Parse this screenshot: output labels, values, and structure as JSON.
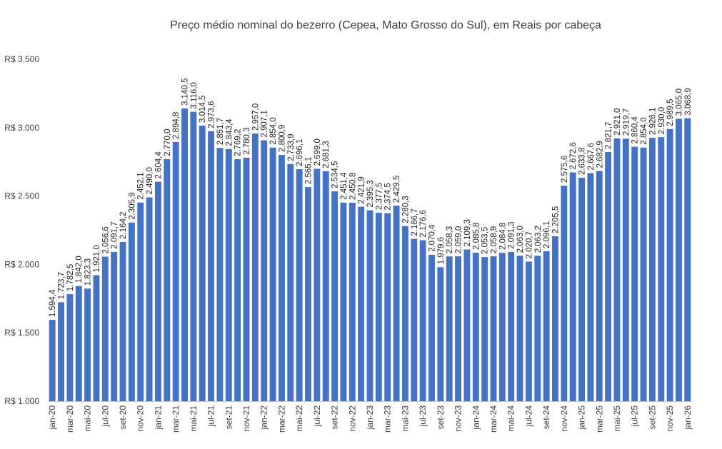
{
  "chart_data": {
    "type": "bar",
    "title": "Preço médio nominal do bezerro (Cepea, Mato Grosso do Sul), em Reais por cabeça",
    "xlabel": "",
    "ylabel": "",
    "ylim": [
      1000,
      3500
    ],
    "yticks": [
      1000,
      1500,
      2000,
      2500,
      3000,
      3500
    ],
    "ytick_labels": [
      "R$ 1.000",
      "R$ 1.500",
      "R$ 2.000",
      "R$ 2.500",
      "R$ 3.000",
      "R$ 3.500"
    ],
    "bar_color": "#4472C4",
    "grid": false,
    "legend": "none",
    "categories": [
      "jan-20",
      "fev-20",
      "mar-20",
      "abr-20",
      "mai-20",
      "jun-20",
      "jul-20",
      "ago-20",
      "set-20",
      "out-20",
      "nov-20",
      "dez-20",
      "jan-21",
      "fev-21",
      "mar-21",
      "abr-21",
      "mai-21",
      "jun-21",
      "jul-21",
      "ago-21",
      "set-21",
      "out-21",
      "nov-21",
      "dez-21",
      "jan-22",
      "fev-22",
      "mar-22",
      "abr-22",
      "mai-22",
      "jun-22",
      "jul-22",
      "ago-22",
      "set-22",
      "out-22",
      "nov-22",
      "dez-22",
      "jan-23",
      "fev-23",
      "mar-23",
      "abr-23",
      "mai-23",
      "jun-23",
      "jul-23",
      "ago-23",
      "set-23",
      "out-23",
      "nov-23",
      "dez-23",
      "jan-24",
      "fev-24",
      "mar-24",
      "abr-24",
      "mai-24",
      "jun-24",
      "jul-24",
      "ago-24",
      "set-24",
      "out-24",
      "nov-24",
      "dez-24",
      "jan-25",
      "fev-25",
      "mar-25",
      "abr-25",
      "mai-25",
      "jun-25",
      "jul-25",
      "ago-25",
      "set-25",
      "out-25",
      "nov-25",
      "dez-25",
      "jan-26"
    ],
    "shown_category_labels": [
      "jan-20",
      "",
      "mar-20",
      "",
      "mai-20",
      "",
      "jul-20",
      "",
      "set-20",
      "",
      "nov-20",
      "",
      "jan-21",
      "",
      "mar-21",
      "",
      "mai-21",
      "",
      "jul-21",
      "",
      "set-21",
      "",
      "nov-21",
      "",
      "jan-22",
      "",
      "mar-22",
      "",
      "mai-22",
      "",
      "jul-22",
      "",
      "set-22",
      "",
      "nov-22",
      "",
      "jan-23",
      "",
      "mar-23",
      "",
      "mai-23",
      "",
      "jul-23",
      "",
      "set-23",
      "",
      "nov-23",
      "",
      "jan-24",
      "",
      "mar-24",
      "",
      "mai-24",
      "",
      "jul-24",
      "",
      "set-24",
      "",
      "nov-24",
      "",
      "jan-25",
      "",
      "mar-25",
      "",
      "mai-25",
      "",
      "jul-25",
      "",
      "set-25",
      "",
      "nov-25",
      "",
      "jan-26"
    ],
    "values": [
      1594.4,
      1723.7,
      1782.5,
      1842.0,
      1823.3,
      1921.0,
      2056.6,
      2091.7,
      2164.2,
      2305.9,
      2452.1,
      2490.0,
      2604.4,
      2770.0,
      2894.8,
      3140.5,
      3116.0,
      3014.5,
      2973.6,
      2851.7,
      2843.4,
      2769.2,
      2780.3,
      2957.0,
      2907.1,
      2854.0,
      2800.9,
      2733.9,
      2696.1,
      2565.1,
      2699.0,
      2681.3,
      2534.5,
      2451.4,
      2450.8,
      2421.9,
      2395.3,
      2377.5,
      2374.5,
      2429.5,
      2280.3,
      2186.7,
      2176.6,
      2070.4,
      1979.6,
      2058.3,
      2059.0,
      2109.3,
      2085.8,
      2053.5,
      2058.9,
      2084.8,
      2091.3,
      2063.0,
      2020.7,
      2063.2,
      2096.1,
      2205.5,
      2575.6,
      2672.6,
      2633.8,
      2667.6,
      2682.9,
      2821.7,
      2921.0,
      2919.7,
      2860.4,
      2854.0,
      2926.1,
      2930.0,
      2989.5,
      3065.0,
      3068.9
    ],
    "data_labels": [
      "1.594,4",
      "1.723,7",
      "1.782,5",
      "1.842,0",
      "1.823,3",
      "1.921,0",
      "2.056,6",
      "2.091,7",
      "2.164,2",
      "2.305,9",
      "2.452,1",
      "2.490,0",
      "2.604,4",
      "2.770,0",
      "2.894,8",
      "3.140,5",
      "3.116,0",
      "3.014,5",
      "2.973,6",
      "2.851,7",
      "2.843,4",
      "2.769,2",
      "2.780,3",
      "2.957,0",
      "2.907,1",
      "2.854,0",
      "2.800,9",
      "2.733,9",
      "2.696,1",
      "2.565,1",
      "2.699,0",
      "2.681,3",
      "2.534,5",
      "2.451,4",
      "2.450,8",
      "2.421,9",
      "2.395,3",
      "2.377,5",
      "2.374,5",
      "2.429,5",
      "2.280,3",
      "2.186,7",
      "2.176,6",
      "2.070,4",
      "1.979,6",
      "2.058,3",
      "2.059,0",
      "2.109,3",
      "2.085,8",
      "2.053,5",
      "2.058,9",
      "2.084,8",
      "2.091,3",
      "2.063,0",
      "2.020,7",
      "2.063,2",
      "2.096,1",
      "2.205,5",
      "2.575,6",
      "2.672,6",
      "2.633,8",
      "2.667,6",
      "2.682,9",
      "2.821,7",
      "2.921,0",
      "2.919,7",
      "2.860,4",
      "2.854,0",
      "2.926,1",
      "2.930,0",
      "2.989,5",
      "3.065,0",
      "3.068,9"
    ]
  }
}
